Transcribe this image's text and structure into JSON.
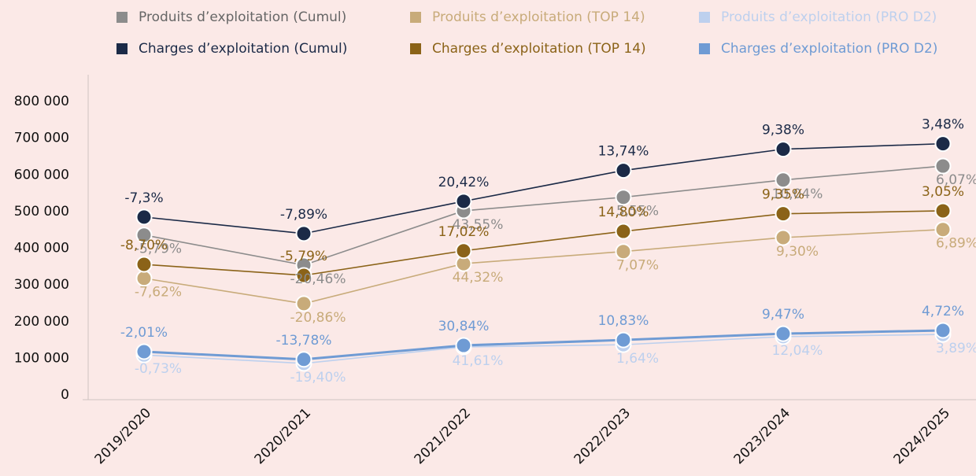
{
  "chart_data": {
    "type": "line",
    "categories": [
      "2019/2020",
      "2020/2021",
      "2021/2022",
      "2022/2023",
      "2023/2024",
      "2024/2025"
    ],
    "ylim": [
      0,
      800000
    ],
    "yticks": [
      0,
      {
        "value": 100000,
        "label": "100 000"
      },
      {
        "value": 200000,
        "label": "200 000"
      },
      {
        "value": 300000,
        "label": "300 000"
      },
      {
        "value": 400000,
        "label": "400 000"
      },
      {
        "value": 500000,
        "label": "500 000"
      },
      {
        "value": 600000,
        "label": "600 000"
      },
      {
        "value": 700000,
        "label": "700 000"
      },
      {
        "value": 800000,
        "label": "800 000"
      }
    ],
    "series": [
      {
        "name": "Produits d’exploitation (Cumul)",
        "color": "#8c8c8c",
        "values": [
          436000,
          354000,
          502000,
          539000,
          586000,
          624000
        ],
        "point_labels": [
          "-5,79%",
          "-20,46%",
          "43,55%",
          "5,55%",
          "10,04%",
          "6,07%"
        ]
      },
      {
        "name": "Produits d’exploitation (TOP 14)",
        "color": "#c8ab7a",
        "values": [
          318000,
          249000,
          358000,
          391000,
          429000,
          451000
        ],
        "point_labels": [
          "-7,62%",
          "-20,86%",
          "44,32%",
          "7,07%",
          "9,30%",
          "6,89%"
        ]
      },
      {
        "name": "Produits d’exploitation (PRO D2)",
        "color": "#bdd0ee",
        "values": [
          109000,
          86000,
          131000,
          137000,
          159000,
          165000
        ],
        "point_labels": [
          "-0,73%",
          "-19,40%",
          "41,61%",
          "1,64%",
          "12,04%",
          "3,89%"
        ]
      },
      {
        "name": "Charges d’exploitation (Cumul)",
        "color": "#1b2a47",
        "values": [
          485000,
          440000,
          528000,
          612000,
          670000,
          685000
        ],
        "point_labels": [
          "-7,3%",
          "-7,89%",
          "20,42%",
          "13,74%",
          "9,38%",
          "3,48%"
        ]
      },
      {
        "name": "Charges d’exploitation (TOP 14)",
        "color": "#8b6318",
        "values": [
          356000,
          326000,
          393000,
          446000,
          494000,
          502000
        ],
        "point_labels": [
          "-8,70%",
          "-5,79%",
          "17,02%",
          "14,80%",
          "9,35%",
          "3,05%"
        ]
      },
      {
        "name": "Charges d’exploitation (PRO D2)",
        "color": "#6f9bd4",
        "values": [
          118000,
          97000,
          135000,
          150000,
          167000,
          176000
        ],
        "point_labels": [
          "-2,01%",
          "-13,78%",
          "30,84%",
          "10,83%",
          "9,47%",
          "4,72%"
        ]
      }
    ]
  }
}
